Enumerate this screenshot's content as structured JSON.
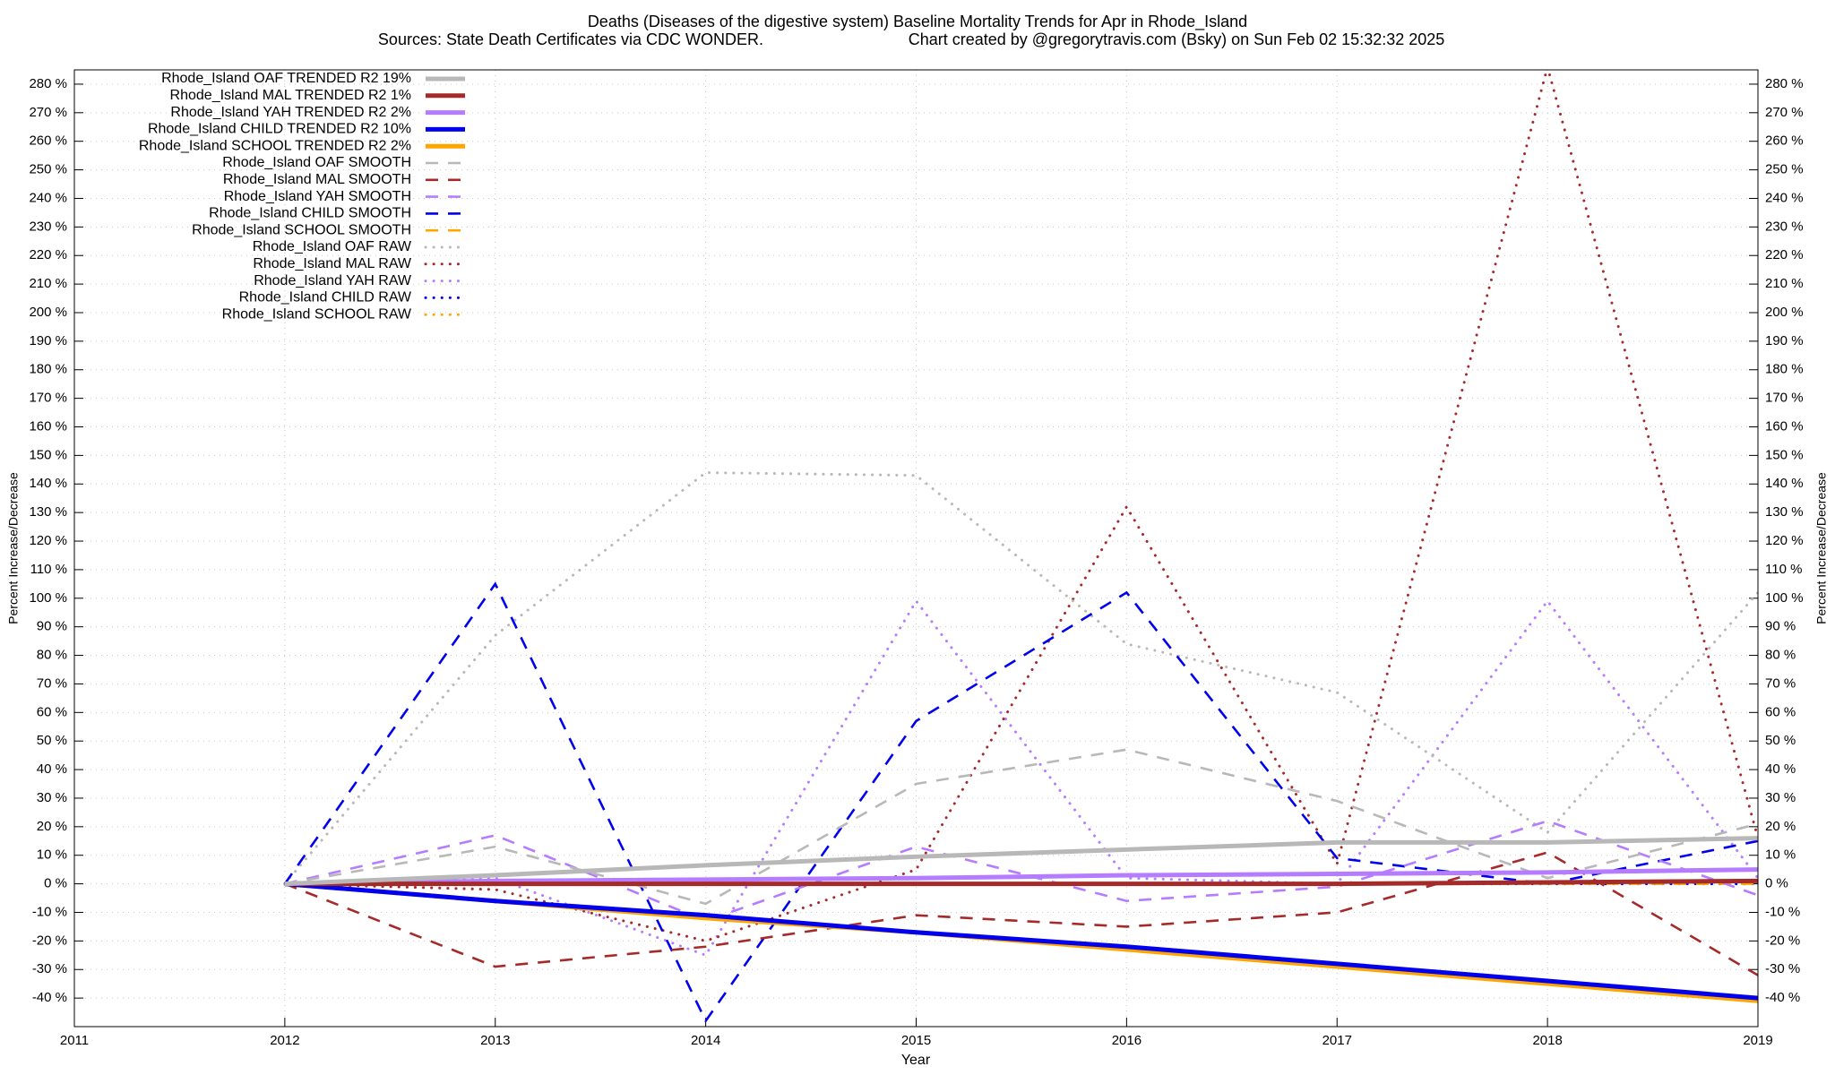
{
  "chart_data": {
    "type": "line",
    "title": "Deaths (Diseases of the digestive system)  Baseline Mortality Trends for Apr in Rhode_Island",
    "subtitle": "Sources: State Death Certificates via CDC WONDER.",
    "credit": "Chart created by @gregorytravis.com (Bsky) on Sun Feb 02 15:32:32 2025",
    "xlabel": "Year",
    "ylabel": "Percent Increase/Decrease",
    "y2label": "Percent Increase/Decrease",
    "x": [
      2012,
      2013,
      2014,
      2015,
      2016,
      2017,
      2018,
      2019
    ],
    "xlim": [
      2011,
      2019
    ],
    "xticks": [
      2011,
      2012,
      2013,
      2014,
      2015,
      2016,
      2017,
      2018,
      2019
    ],
    "ylim": [
      -50,
      285
    ],
    "yticks": [
      {
        "value": -40,
        "label": "-40 %"
      },
      {
        "value": -30,
        "label": "-30 %"
      },
      {
        "value": -20,
        "label": "-20 %"
      },
      {
        "value": -10,
        "label": "-10 %"
      },
      {
        "value": 0,
        "label": "0 %"
      },
      {
        "value": 10,
        "label": "10 %"
      },
      {
        "value": 20,
        "label": "20 %"
      },
      {
        "value": 30,
        "label": "30 %"
      },
      {
        "value": 40,
        "label": "40 %"
      },
      {
        "value": 50,
        "label": "50 %"
      },
      {
        "value": 60,
        "label": "60 %"
      },
      {
        "value": 70,
        "label": "70 %"
      },
      {
        "value": 80,
        "label": "80 %"
      },
      {
        "value": 90,
        "label": "90 %"
      },
      {
        "value": 100,
        "label": "100 %"
      },
      {
        "value": 110,
        "label": "110 %"
      },
      {
        "value": 120,
        "label": "120 %"
      },
      {
        "value": 130,
        "label": "130 %"
      },
      {
        "value": 140,
        "label": "140 %"
      },
      {
        "value": 150,
        "label": "150 %"
      },
      {
        "value": 160,
        "label": "160 %"
      },
      {
        "value": 170,
        "label": "170 %"
      },
      {
        "value": 180,
        "label": "180 %"
      },
      {
        "value": 190,
        "label": "190 %"
      },
      {
        "value": 200,
        "label": "200 %"
      },
      {
        "value": 210,
        "label": "210 %"
      },
      {
        "value": 220,
        "label": "220 %"
      },
      {
        "value": 230,
        "label": "230 %"
      },
      {
        "value": 240,
        "label": "240 %"
      },
      {
        "value": 250,
        "label": "250 %"
      },
      {
        "value": 260,
        "label": "260 %"
      },
      {
        "value": 270,
        "label": "270 %"
      },
      {
        "value": 280,
        "label": "280 %"
      }
    ],
    "grid": true,
    "legend": "top-left",
    "series": [
      {
        "name": "Rhode_Island OAF TRENDED R2  19%",
        "color": "#b8b8b8",
        "style": "solid",
        "values": [
          0,
          3,
          6.5,
          9.5,
          12,
          14.5,
          14.5,
          16
        ]
      },
      {
        "name": "Rhode_Island MAL TRENDED R2   1%",
        "color": "#a52a2a",
        "style": "solid",
        "values": [
          0,
          0,
          0,
          0,
          0,
          0,
          0.5,
          1
        ]
      },
      {
        "name": "Rhode_Island YAH TRENDED R2   2%",
        "color": "#b57cff",
        "style": "solid",
        "values": [
          0,
          1,
          1.5,
          2,
          3,
          3.5,
          4,
          5
        ]
      },
      {
        "name": "Rhode_Island CHILD TRENDED R2  10%",
        "color": "#0000ee",
        "style": "solid",
        "values": [
          0,
          -6,
          -11,
          -17,
          -22,
          -28,
          -34,
          -40
        ]
      },
      {
        "name": "Rhode_Island SCHOOL TRENDED R2   2%",
        "color": "#ffa500",
        "style": "solid",
        "values": [
          0,
          -6,
          -12,
          -17,
          -23,
          -29,
          -35,
          -41
        ]
      },
      {
        "name": "Rhode_Island OAF SMOOTH",
        "color": "#b8b8b8",
        "style": "dashed",
        "values": [
          0,
          13,
          -7,
          35,
          47,
          29,
          2,
          21
        ]
      },
      {
        "name": "Rhode_Island MAL SMOOTH",
        "color": "#a52a2a",
        "style": "dashed",
        "values": [
          0,
          -29,
          -22,
          -11,
          -15,
          -10,
          11,
          -32
        ]
      },
      {
        "name": "Rhode_Island YAH SMOOTH",
        "color": "#b57cff",
        "style": "dashed",
        "values": [
          0,
          17,
          -13,
          13,
          -6,
          -1,
          22,
          -4
        ]
      },
      {
        "name": "Rhode_Island CHILD SMOOTH",
        "color": "#0000ee",
        "style": "dashed",
        "values": [
          0,
          105,
          -48,
          57,
          102,
          9,
          0,
          15
        ]
      },
      {
        "name": "Rhode_Island SCHOOL SMOOTH",
        "color": "#ffa500",
        "style": "dashed",
        "values": [
          0,
          0,
          0,
          0,
          0,
          0,
          0,
          0
        ]
      },
      {
        "name": "Rhode_Island OAF RAW",
        "color": "#b8b8b8",
        "style": "dotted",
        "values": [
          0,
          87,
          144,
          143,
          84,
          67,
          18,
          102
        ]
      },
      {
        "name": "Rhode_Island MAL RAW",
        "color": "#a52a2a",
        "style": "dotted",
        "values": [
          0,
          -2,
          -20,
          5,
          132,
          7,
          286,
          16
        ]
      },
      {
        "name": "Rhode_Island YAH RAW",
        "color": "#b57cff",
        "style": "dotted",
        "values": [
          0,
          2,
          -25,
          99,
          2,
          0,
          99,
          2
        ]
      },
      {
        "name": "Rhode_Island CHILD RAW",
        "color": "#0000ee",
        "style": "dotted",
        "values": [
          0,
          0,
          0,
          0,
          0,
          0,
          0,
          0
        ]
      },
      {
        "name": "Rhode_Island SCHOOL RAW",
        "color": "#ffa500",
        "style": "dotted",
        "values": [
          0,
          0,
          0,
          0,
          0,
          0,
          0,
          0
        ]
      }
    ]
  }
}
